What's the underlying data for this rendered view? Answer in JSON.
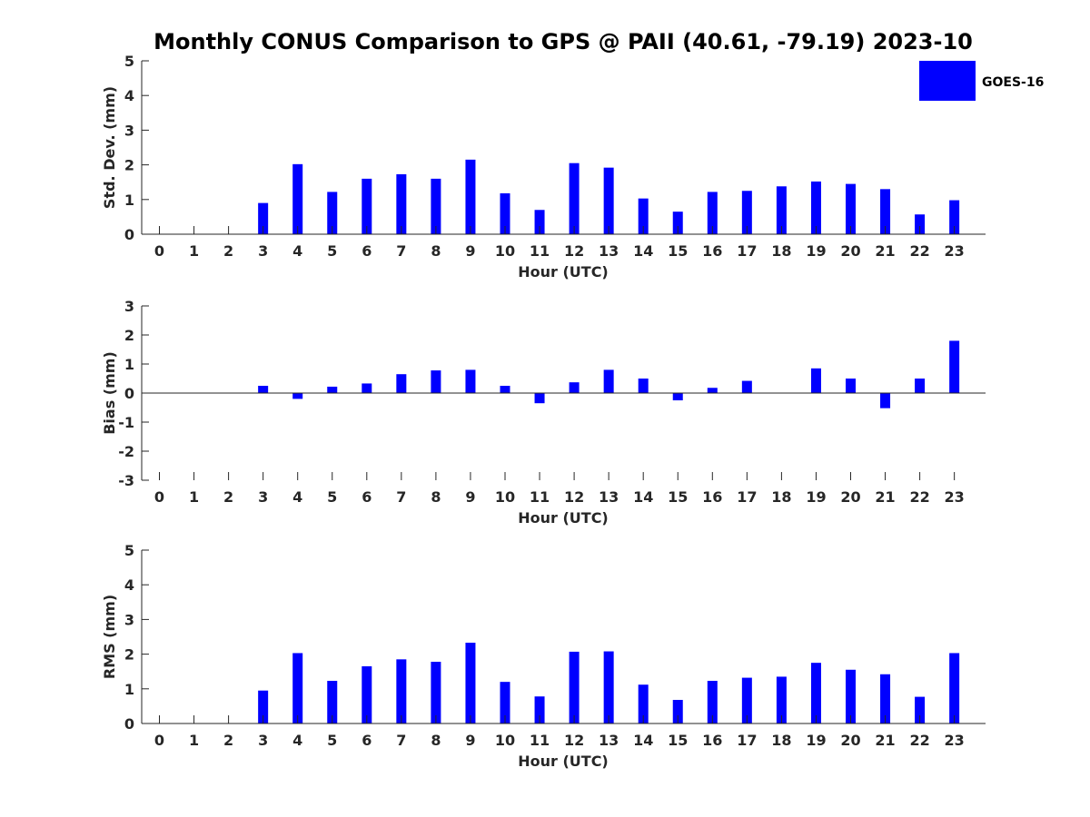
{
  "chart_data": {
    "type": "bar",
    "title": "Monthly CONUS Comparison to GPS @ PAII (40.61, -79.19) 2023-10",
    "legend": {
      "label": "GOES-16",
      "color": "#0000ff",
      "placement": "top-right"
    },
    "bar_color": "#0000ff",
    "categories": [
      "0",
      "1",
      "2",
      "3",
      "4",
      "5",
      "6",
      "7",
      "8",
      "9",
      "10",
      "11",
      "12",
      "13",
      "14",
      "15",
      "16",
      "17",
      "18",
      "19",
      "20",
      "21",
      "22",
      "23"
    ],
    "panels": [
      {
        "name": "std-dev",
        "xlabel": "Hour (UTC)",
        "ylabel": "Std. Dev. (mm)",
        "ylim": [
          0,
          5
        ],
        "yticks": [
          "0",
          "1",
          "2",
          "3",
          "4",
          "5"
        ],
        "values": [
          null,
          null,
          null,
          0.9,
          2.02,
          1.22,
          1.6,
          1.73,
          1.6,
          2.15,
          1.18,
          0.7,
          2.05,
          1.92,
          1.03,
          0.65,
          1.22,
          1.25,
          1.38,
          1.52,
          1.45,
          1.3,
          0.57,
          0.98
        ]
      },
      {
        "name": "bias",
        "xlabel": "Hour (UTC)",
        "ylabel": "Bias (mm)",
        "ylim": [
          -3,
          3
        ],
        "yticks": [
          "-3",
          "-2",
          "-1",
          "0",
          "1",
          "2",
          "3"
        ],
        "values": [
          null,
          null,
          null,
          0.25,
          -0.2,
          0.22,
          0.33,
          0.65,
          0.78,
          0.8,
          0.25,
          -0.35,
          0.37,
          0.8,
          0.5,
          -0.25,
          0.18,
          0.42,
          null,
          0.85,
          0.5,
          -0.52,
          0.5,
          1.8
        ]
      },
      {
        "name": "rms",
        "xlabel": "Hour (UTC)",
        "ylabel": "RMS (mm)",
        "ylim": [
          0,
          5
        ],
        "yticks": [
          "0",
          "1",
          "2",
          "3",
          "4",
          "5"
        ],
        "values": [
          null,
          null,
          null,
          0.95,
          2.03,
          1.23,
          1.65,
          1.85,
          1.78,
          2.33,
          1.2,
          0.78,
          2.07,
          2.08,
          1.12,
          0.68,
          1.23,
          1.32,
          1.35,
          1.75,
          1.55,
          1.42,
          0.77,
          2.03
        ]
      }
    ]
  }
}
